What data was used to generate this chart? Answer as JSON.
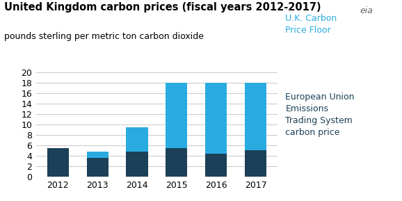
{
  "title": "United Kingdom carbon prices (fiscal years 2012-2017)",
  "subtitle": "pounds sterling per metric ton carbon dioxide",
  "years": [
    "2012",
    "2013",
    "2014",
    "2015",
    "2016",
    "2017"
  ],
  "eu_values": [
    5.5,
    3.7,
    4.8,
    5.5,
    4.4,
    5.1
  ],
  "uk_values": [
    0.0,
    1.2,
    4.7,
    12.5,
    13.6,
    12.9
  ],
  "eu_color": "#1b4057",
  "uk_color": "#29abe2",
  "ylim": [
    0,
    20
  ],
  "yticks": [
    0,
    2,
    4,
    6,
    8,
    10,
    12,
    14,
    16,
    18,
    20
  ],
  "legend_uk_label": "U.K. Carbon\nPrice Floor",
  "legend_eu_label": "European Union\nEmissions\nTrading System\ncarbon price",
  "legend_color_uk": "#29abe2",
  "legend_color_eu": "#1b4057",
  "background_color": "#ffffff",
  "grid_color": "#c8c8c8",
  "title_fontsize": 10.5,
  "subtitle_fontsize": 9,
  "tick_fontsize": 9,
  "bar_width": 0.55
}
